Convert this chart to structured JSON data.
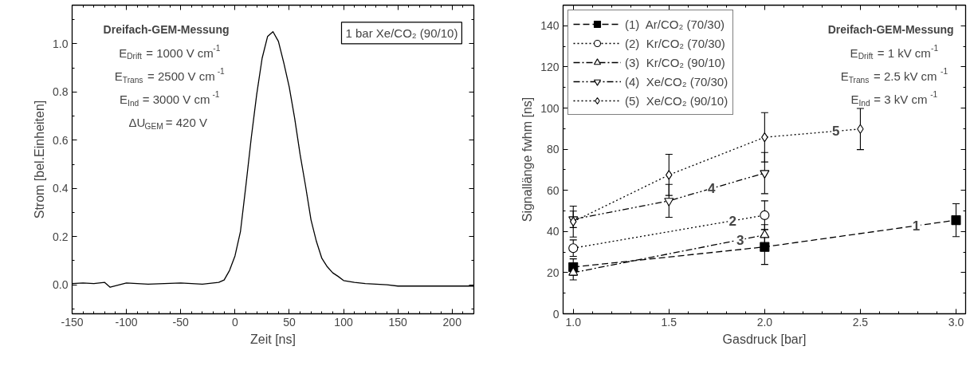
{
  "chart_data": [
    {
      "type": "line",
      "xlabel": "Zeit [ns]",
      "ylabel": "Strom [bel.Einheiten]",
      "annotations": [
        "1 bar Xe/CO₂ (90/10)",
        "Dreifach-GEM-Messung",
        "E$_{Drift}$ = 1000 V cm$^{-1}$",
        "E$_{Trans}$ = 2500 V cm$^{-1}$",
        "E$_{Ind}$ = 3000 V cm$^{-1}$",
        "ΔU$_{GEM}$ = 420 V"
      ],
      "series": [
        {
          "color": "#000000",
          "x": [
            -150,
            -140,
            -130,
            -120,
            -115,
            -100,
            -80,
            -50,
            -30,
            -15,
            -10,
            -5,
            0,
            5,
            10,
            15,
            20,
            25,
            30,
            35,
            40,
            45,
            50,
            55,
            60,
            65,
            70,
            75,
            80,
            85,
            90,
            95,
            100,
            110,
            120,
            140,
            150,
            170,
            200,
            220
          ],
          "values": [
            0.005,
            0.008,
            0.005,
            0.01,
            -0.01,
            0.008,
            0.003,
            0.008,
            0.003,
            0.01,
            0.02,
            0.06,
            0.12,
            0.22,
            0.41,
            0.61,
            0.79,
            0.94,
            1.03,
            1.05,
            1.01,
            0.92,
            0.82,
            0.69,
            0.54,
            0.41,
            0.27,
            0.18,
            0.11,
            0.075,
            0.05,
            0.035,
            0.018,
            0.01,
            0.005,
            0.0,
            -0.005,
            -0.005,
            -0.005,
            -0.005
          ]
        }
      ],
      "xlim": [
        -150,
        220
      ],
      "ylim": [
        -0.12,
        1.16
      ],
      "xticks": [
        -150,
        -100,
        -50,
        0,
        50,
        100,
        150,
        200
      ],
      "yticks": [
        {
          "value": 0,
          "label": "0.0"
        },
        {
          "value": 0.2,
          "label": "0.2"
        },
        {
          "value": 0.4,
          "label": "0.4"
        },
        {
          "value": 0.6,
          "label": "0.6"
        },
        {
          "value": 0.8,
          "label": "0.8"
        },
        {
          "value": 1.0,
          "label": "1.0"
        }
      ],
      "grid": false,
      "legend": false,
      "line_style": "solid"
    },
    {
      "type": "line",
      "xlabel": "Gasdruck [bar]",
      "ylabel": "Signallänge fwhm [ns]",
      "annotations": [
        "Dreifach-GEM-Messung",
        "E$_{Drift}$ = 1 kV cm$^{-1}$",
        "E$_{Trans}$ = 2.5 kV cm$^{-1}$",
        "E$_{Ind}$ = 3 kV cm$^{-1}$",
        {
          "text": "1",
          "x": 2.78,
          "y": 43
        },
        {
          "text": "2",
          "x": 1.83,
          "y": 45
        },
        {
          "text": "3",
          "x": 1.87,
          "y": 36
        },
        {
          "text": "4",
          "x": 1.72,
          "y": 61
        },
        {
          "text": "5",
          "x": 2.37,
          "y": 89
        }
      ],
      "series": [
        {
          "name": "(1)  Ar/CO₂ (70/30)",
          "color": "#000000",
          "marker": "square",
          "line_style": "dashed",
          "x": [
            1,
            2,
            3
          ],
          "values": [
            22.7,
            32.5,
            45.5
          ],
          "errors": [
            4,
            8.5,
            8
          ]
        },
        {
          "name": "(2)  Kr/CO₂ (70/30)",
          "color": "#000000",
          "marker": "circle",
          "line_style": "dotted",
          "x": [
            1,
            2
          ],
          "values": [
            31.9,
            47.9
          ],
          "errors": [
            4,
            7
          ]
        },
        {
          "name": "(3)  Kr/CO₂ (90/10)",
          "color": "#000000",
          "marker": "triangle",
          "line_style": "dashdot",
          "x": [
            1,
            2
          ],
          "values": [
            20,
            38.3
          ],
          "errors": [
            3.5,
            5
          ]
        },
        {
          "name": "(4)  Xe/CO₂ (70/30)",
          "color": "#000000",
          "marker": "triangle_down",
          "line_style": "dashdotdot",
          "x": [
            1,
            1.5,
            2
          ],
          "values": [
            45.9,
            54.9,
            68.4
          ],
          "errors": [
            4,
            8,
            10
          ]
        },
        {
          "name": "(5)  Xe/CO₂ (90/10)",
          "color": "#000000",
          "marker": "diamond",
          "line_style": "dotted",
          "x": [
            1,
            1.5,
            2,
            2.5
          ],
          "values": [
            44.8,
            67.5,
            85.8,
            89.8
          ],
          "errors": [
            7.5,
            10,
            12,
            10
          ]
        }
      ],
      "xlim": [
        0.947,
        3.05
      ],
      "ylim": [
        0,
        150
      ],
      "xticks": [
        {
          "value": 1,
          "label": "1.0"
        },
        {
          "value": 1.5,
          "label": "1.5"
        },
        {
          "value": 2,
          "label": "2.0"
        },
        {
          "value": 2.5,
          "label": "2.5"
        },
        {
          "value": 3,
          "label": "3.0"
        }
      ],
      "yticks": [
        0,
        20,
        40,
        60,
        80,
        100,
        120,
        140
      ],
      "grid": false,
      "legend": "top left"
    }
  ]
}
